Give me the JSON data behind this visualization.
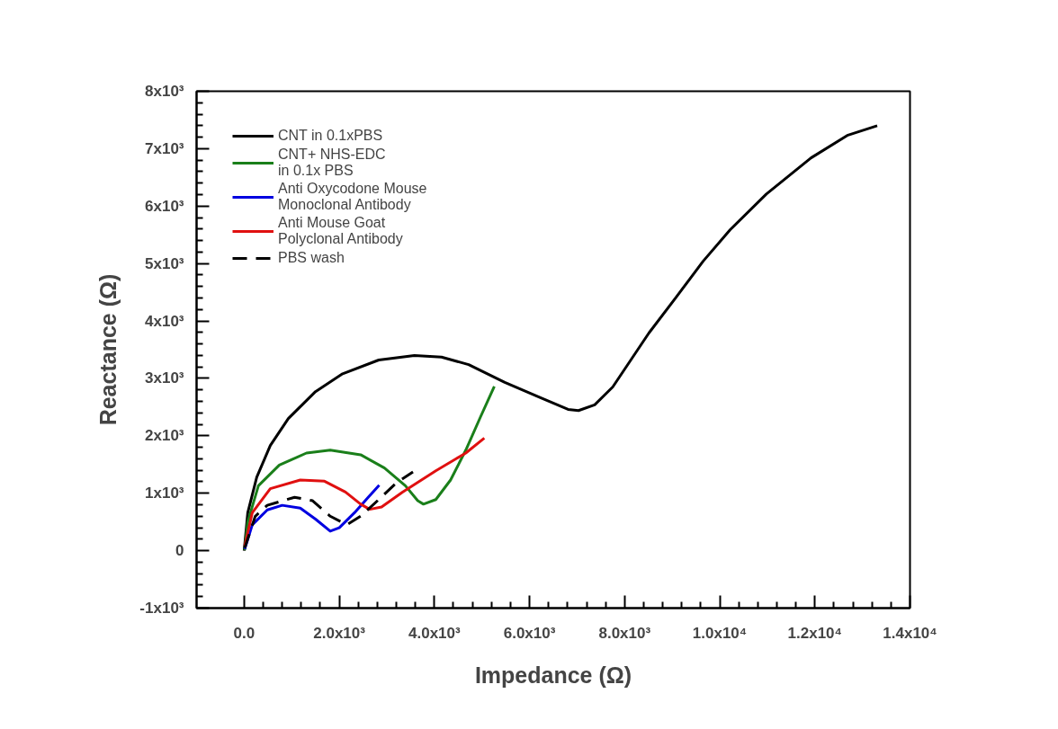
{
  "chart_data": {
    "type": "line",
    "xlabel": "Impedance (Ω)",
    "ylabel": "Reactance (Ω)",
    "xlim": [
      -1000,
      14000
    ],
    "ylim": [
      -1000,
      8000
    ],
    "xticks": [
      {
        "value": 0,
        "label": "0.0"
      },
      {
        "value": 2000,
        "label": "2.0x10³"
      },
      {
        "value": 4000,
        "label": "4.0x10³"
      },
      {
        "value": 6000,
        "label": "6.0x10³"
      },
      {
        "value": 8000,
        "label": "8.0x10³"
      },
      {
        "value": 10000,
        "label": "1.0x10⁴"
      },
      {
        "value": 12000,
        "label": "1.2x10⁴"
      },
      {
        "value": 14000,
        "label": "1.4x10⁴"
      }
    ],
    "yticks": [
      {
        "value": -1000,
        "label": "-1x10³"
      },
      0,
      {
        "value": 1000,
        "label": "1x10³"
      },
      {
        "value": 2000,
        "label": "2x10³"
      },
      {
        "value": 3000,
        "label": "3x10³"
      },
      {
        "value": 4000,
        "label": "4x10³"
      },
      {
        "value": 5000,
        "label": "5x10³"
      },
      {
        "value": 6000,
        "label": "6x10³"
      },
      {
        "value": 7000,
        "label": "7x10³"
      },
      {
        "value": 8000,
        "label": "8x10³"
      }
    ],
    "grid": false,
    "legend": "top left",
    "marker": "none",
    "series": [
      {
        "name": "CNT in 0.1xPBS",
        "color": "#000000",
        "x": [
          0,
          76,
          265,
          550,
          929,
          1500,
          2070,
          2830,
          3580,
          4150,
          4720,
          5480,
          6240,
          6810,
          7030,
          7370,
          7750,
          8130,
          8510,
          9080,
          9650,
          10220,
          10980,
          11920,
          12680,
          13310
        ],
        "values": [
          0,
          660,
          1280,
          1830,
          2300,
          2770,
          3080,
          3320,
          3400,
          3370,
          3240,
          2930,
          2660,
          2460,
          2440,
          2540,
          2850,
          3320,
          3790,
          4410,
          5040,
          5590,
          6210,
          6840,
          7230,
          7400
        ]
      },
      {
        "name": "CNT+ NHS-EDC\nin 0.1x PBS",
        "color": "#1a7f1a",
        "x": [
          10,
          76,
          300,
          740,
          1310,
          1810,
          2450,
          2950,
          3390,
          3650,
          3770,
          4030,
          4340,
          4660,
          4970,
          5260
        ],
        "values": [
          10,
          500,
          1130,
          1490,
          1700,
          1750,
          1670,
          1440,
          1130,
          870,
          810,
          890,
          1230,
          1750,
          2330,
          2860
        ]
      },
      {
        "name": "Anti Oxycodone Mouse\nMonoclonal Antibody",
        "color": "#0000e0",
        "x": [
          13,
          171,
          487,
          800,
          1180,
          1500,
          1810,
          2000,
          2320,
          2600,
          2840
        ],
        "values": [
          30,
          450,
          710,
          790,
          740,
          550,
          340,
          400,
          660,
          920,
          1140
        ]
      },
      {
        "name": "Anti Mouse Goat\nPolyclonal Antibody",
        "color": "#e01010",
        "x": [
          13,
          171,
          550,
          1180,
          1690,
          2130,
          2450,
          2640,
          2890,
          3330,
          4030,
          4660,
          5050
        ],
        "values": [
          80,
          660,
          1080,
          1230,
          1210,
          1020,
          810,
          720,
          760,
          1020,
          1390,
          1700,
          1960
        ]
      },
      {
        "name": "PBS wash",
        "color": "#000000",
        "line_style": "dashed",
        "x": [
          13,
          234,
          487,
          1060,
          1440,
          1810,
          2160,
          2450,
          2830,
          3200,
          3550
        ],
        "values": [
          50,
          600,
          790,
          930,
          870,
          600,
          450,
          600,
          890,
          1180,
          1370
        ]
      }
    ]
  }
}
